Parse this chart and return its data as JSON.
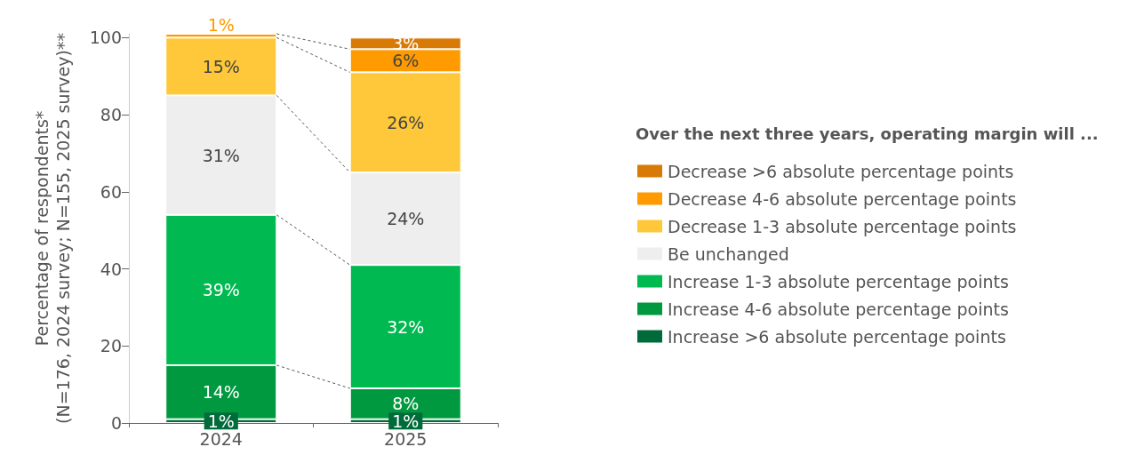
{
  "chart_data": {
    "type": "bar",
    "stacked": true,
    "categories": [
      "2024",
      "2025"
    ],
    "ylabel": "Percentage of respondents*\n(N=176, 2024 survey; N=155, 2025 survey)**",
    "legend_title": "Over the next three years, operating margin will ...",
    "ylim": [
      0,
      101
    ],
    "yticks": [
      0,
      20,
      40,
      60,
      80,
      100
    ],
    "grid": false,
    "legend": "right",
    "series": [
      {
        "name": "Increase >6 absolute percentage points",
        "color": "#006b3a",
        "values": [
          1,
          1
        ],
        "value_labels": [
          "1%",
          "1%"
        ]
      },
      {
        "name": "Increase 4-6 absolute percentage points",
        "color": "#00993f",
        "values": [
          14,
          8
        ],
        "value_labels": [
          "14%",
          "8%"
        ]
      },
      {
        "name": "Increase 1-3 absolute percentage points",
        "color": "#00b950",
        "values": [
          39,
          32
        ],
        "value_labels": [
          "39%",
          "32%"
        ]
      },
      {
        "name": "Be unchanged",
        "color": "#eeeeee",
        "values": [
          31,
          24
        ],
        "value_labels": [
          "31%",
          "24%"
        ]
      },
      {
        "name": "Decrease 1-3 absolute percentage points",
        "color": "#ffc83a",
        "values": [
          15,
          26
        ],
        "value_labels": [
          "15%",
          "26%"
        ]
      },
      {
        "name": "Decrease 4-6 absolute percentage points",
        "color": "#ff9a00",
        "values": [
          1,
          6
        ],
        "value_labels": [
          "1%",
          "6%"
        ]
      },
      {
        "name": "Decrease >6 absolute percentage points",
        "color": "#d97a06",
        "values": [
          null,
          3
        ],
        "value_labels": [
          null,
          "3%"
        ]
      }
    ]
  }
}
